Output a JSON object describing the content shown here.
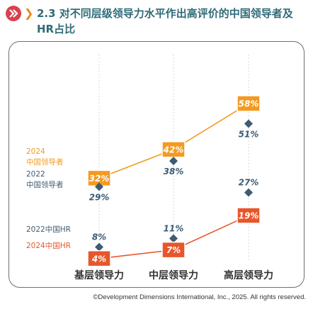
{
  "header": {
    "title": "2.3 对不同层级领导力水平作出高评价的中国领导者及HR占比",
    "logo_icon": "ddi-logo-icon",
    "chevron_icon": "chevron-right-icon",
    "colors": {
      "title": "#2F6B78",
      "logo": "#D8424F",
      "chevron": "#E98A17"
    }
  },
  "footer": {
    "copyright": "©Development Dimensions International, Inc., 2025. All rights reserved."
  },
  "chart_data": {
    "type": "line",
    "categories": [
      "基层领导力",
      "中层领导力",
      "高层领导力"
    ],
    "unit": "%",
    "ylim": [
      0,
      65
    ],
    "grid": "vertical dotted",
    "series": [
      {
        "name": "2024 中国领导者",
        "legend": [
          "2024",
          "中国领导者"
        ],
        "values": [
          32,
          42,
          58
        ],
        "color": "#F39A21",
        "marker": "box-label",
        "connected": true
      },
      {
        "name": "2022 中国领导者",
        "legend": [
          "2022",
          "中国领导者"
        ],
        "values": [
          29,
          38,
          51
        ],
        "color": "#3E5C73",
        "marker": "diamond",
        "connected": false
      },
      {
        "name": "2022中国HR",
        "legend": [
          "2022中国HR"
        ],
        "values": [
          8,
          11,
          27
        ],
        "color": "#3E5C73",
        "marker": "diamond",
        "connected": false
      },
      {
        "name": "2024中国HR",
        "legend": [
          "2024中国HR"
        ],
        "values": [
          4,
          7,
          19
        ],
        "color": "#E8562A",
        "marker": "box-label",
        "connected": true
      }
    ]
  }
}
